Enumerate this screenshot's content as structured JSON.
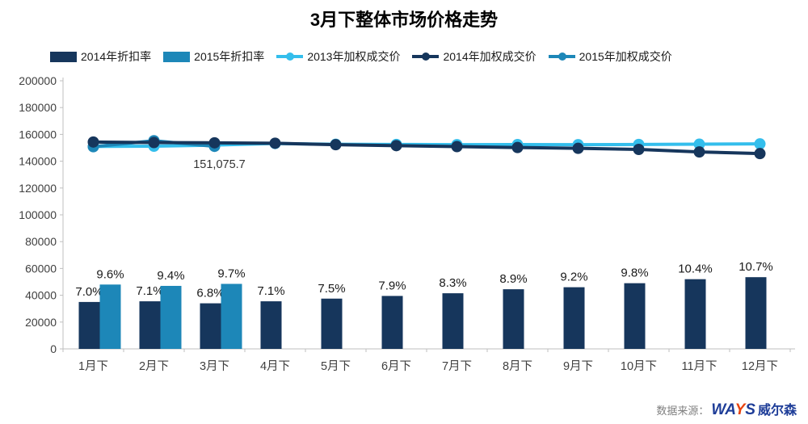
{
  "title": "3月下整体市场价格走势",
  "source": {
    "prefix": "数据来源：",
    "logo_wa": "WA",
    "logo_y": "Y",
    "logo_s": "S",
    "company": "威尔森"
  },
  "colors": {
    "navy": "#16365c",
    "teal": "#1d87b8",
    "lightblue": "#34beec",
    "axis": "#bfbfbf",
    "tick_text": "#404040",
    "bar_label": "#1a1a1a",
    "annotation_text": "#333333",
    "logo_navy": "#1e3d98",
    "logo_orange": "#e8430f",
    "source_gray": "#7f7f7f"
  },
  "chart_data": {
    "type": "bar",
    "subtype": "bar-line-combo",
    "title": "3月下整体市场价格走势",
    "xlabel": "",
    "ylabel": "",
    "grid": false,
    "legend_position": "top-left",
    "categories": [
      "1月下",
      "2月下",
      "3月下",
      "4月下",
      "5月下",
      "6月下",
      "7月下",
      "8月下",
      "9月下",
      "10月下",
      "11月下",
      "12月下"
    ],
    "y_axis": {
      "min": 0,
      "max": 200000,
      "step": 20000
    },
    "bar_value_scale": 5000,
    "bar_series": [
      {
        "name": "2014年折扣率",
        "color_key": "navy",
        "unit": "%",
        "values_pct": [
          7.0,
          7.1,
          6.8,
          7.1,
          7.5,
          7.9,
          8.3,
          8.9,
          9.2,
          9.8,
          10.4,
          10.7
        ]
      },
      {
        "name": "2015年折扣率",
        "color_key": "teal",
        "unit": "%",
        "values_pct": [
          9.6,
          9.4,
          9.7,
          null,
          null,
          null,
          null,
          null,
          null,
          null,
          null,
          null
        ]
      }
    ],
    "line_series": [
      {
        "name": "2013年加权成交价",
        "color_key": "lightblue",
        "values": [
          151000,
          151200,
          152000,
          153200,
          152600,
          152500,
          152300,
          152400,
          152300,
          152500,
          152700,
          152900
        ]
      },
      {
        "name": "2015年加权成交价",
        "color_key": "teal",
        "values": [
          150800,
          155300,
          151075.7,
          null,
          null,
          null,
          null,
          null,
          null,
          null,
          null,
          null
        ]
      },
      {
        "name": "2014年加权成交价",
        "color_key": "navy",
        "values": [
          154300,
          153900,
          153700,
          153400,
          152300,
          151600,
          150900,
          150200,
          149600,
          148800,
          146900,
          145700
        ]
      }
    ],
    "annotation": {
      "text": "151,075.7",
      "category_index": 2,
      "series": "2015年加权成交价",
      "value": 151075.7
    },
    "legend": [
      {
        "label": "2014年折扣率",
        "type": "bar",
        "color_key": "navy"
      },
      {
        "label": "2015年折扣率",
        "type": "bar",
        "color_key": "teal"
      },
      {
        "label": "2013年加权成交价",
        "type": "line",
        "color_key": "lightblue"
      },
      {
        "label": "2014年加权成交价",
        "type": "line",
        "color_key": "navy"
      },
      {
        "label": "2015年加权成交价",
        "type": "line",
        "color_key": "teal"
      }
    ]
  }
}
